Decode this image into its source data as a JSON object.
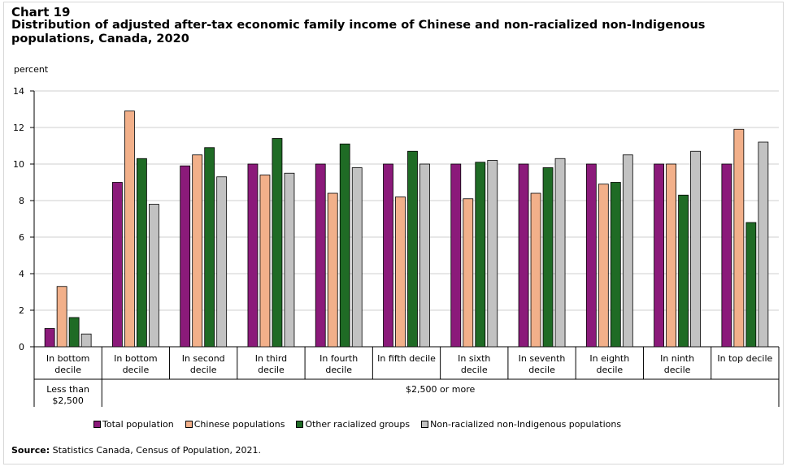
{
  "chart_label": "Chart 19",
  "title": "Distribution of adjusted after-tax economic family income of Chinese and non-racialized non-Indigenous populations, Canada, 2020",
  "y_unit": "percent",
  "source_label": "Source:",
  "source_text": " Statistics Canada, Census of Population, 2021.",
  "colors": {
    "Total population": "#8b1a7a",
    "Chinese populations": "#f2b08a",
    "Other racialized groups": "#1f6b25",
    "Non-racialized non-Indigenous populations": "#c2c2c2"
  },
  "chart_data": {
    "type": "bar",
    "title": "Distribution of adjusted after-tax economic family income of Chinese and non-racialized non-Indigenous populations, Canada, 2020",
    "ylabel": "percent",
    "xlabel": "",
    "ylim": [
      0,
      14
    ],
    "yticks": [
      0,
      2,
      4,
      6,
      8,
      10,
      12,
      14
    ],
    "grid": true,
    "legend_position": "bottom",
    "categories": [
      [
        "In bottom",
        "decile"
      ],
      [
        "In bottom",
        "decile"
      ],
      [
        "In second",
        "decile"
      ],
      [
        "In third",
        "decile"
      ],
      [
        "In fourth",
        "decile"
      ],
      [
        "In fifth decile"
      ],
      [
        "In sixth",
        "decile"
      ],
      [
        "In seventh",
        "decile"
      ],
      [
        "In eighth",
        "decile"
      ],
      [
        "In ninth",
        "decile"
      ],
      [
        "In top decile"
      ]
    ],
    "groups": [
      {
        "label": [
          "Less than",
          "$2,500"
        ],
        "count": 1
      },
      {
        "label": [
          "$2,500 or more"
        ],
        "count": 10
      }
    ],
    "series": [
      {
        "name": "Total population",
        "values": [
          1.0,
          9.0,
          9.9,
          10.0,
          10.0,
          10.0,
          10.0,
          10.0,
          10.0,
          10.0,
          10.0
        ]
      },
      {
        "name": "Chinese populations",
        "values": [
          3.3,
          12.9,
          10.5,
          9.4,
          8.4,
          8.2,
          8.1,
          8.4,
          8.9,
          10.0,
          11.9
        ]
      },
      {
        "name": "Other racialized groups",
        "values": [
          1.6,
          10.3,
          10.9,
          11.4,
          11.1,
          10.7,
          10.1,
          9.8,
          9.0,
          8.3,
          6.8
        ]
      },
      {
        "name": "Non-racialized non-Indigenous populations",
        "values": [
          0.7,
          7.8,
          9.3,
          9.5,
          9.8,
          10.0,
          10.2,
          10.3,
          10.5,
          10.7,
          11.2
        ]
      }
    ]
  }
}
